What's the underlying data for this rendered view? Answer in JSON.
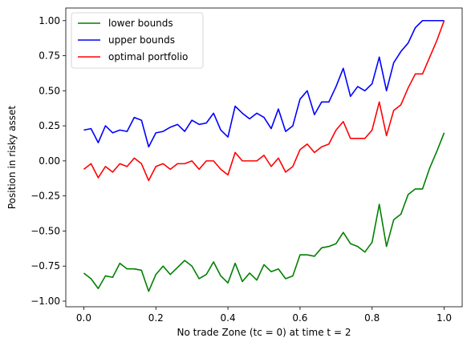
{
  "chart_data": {
    "type": "line",
    "title": "",
    "xlabel": "No trade Zone (tc = 0) at time t = 2",
    "ylabel": "Position in risky asset",
    "xlim": [
      -0.05,
      1.05
    ],
    "ylim": [
      -1.04,
      1.09
    ],
    "xticks": [
      0.0,
      0.2,
      0.4,
      0.6,
      0.8,
      1.0
    ],
    "xtick_labels": [
      "0.0",
      "0.2",
      "0.4",
      "0.6",
      "0.8",
      "1.0"
    ],
    "yticks": [
      -1.0,
      -0.75,
      -0.5,
      -0.25,
      0.0,
      0.25,
      0.5,
      0.75,
      1.0
    ],
    "ytick_labels": [
      "−1.00",
      "−0.75",
      "−0.50",
      "−0.25",
      "0.00",
      "0.25",
      "0.50",
      "0.75",
      "1.00"
    ],
    "grid": false,
    "legend_position": "upper-left",
    "x": [
      0.0,
      0.02,
      0.04,
      0.06,
      0.08,
      0.1,
      0.12,
      0.14,
      0.16,
      0.18,
      0.2,
      0.22,
      0.24,
      0.26,
      0.28,
      0.3,
      0.32,
      0.34,
      0.36,
      0.38,
      0.4,
      0.42,
      0.44,
      0.46,
      0.48,
      0.5,
      0.52,
      0.54,
      0.56,
      0.58,
      0.6,
      0.62,
      0.64,
      0.66,
      0.68,
      0.7,
      0.72,
      0.74,
      0.76,
      0.78,
      0.8,
      0.82,
      0.84,
      0.86,
      0.88,
      0.9,
      0.92,
      0.94,
      0.96,
      0.98,
      1.0
    ],
    "series": [
      {
        "name": "lower bounds",
        "color": "#008000",
        "values": [
          -0.8,
          -0.84,
          -0.91,
          -0.82,
          -0.83,
          -0.73,
          -0.77,
          -0.77,
          -0.78,
          -0.93,
          -0.81,
          -0.75,
          -0.81,
          -0.76,
          -0.71,
          -0.75,
          -0.84,
          -0.81,
          -0.72,
          -0.82,
          -0.87,
          -0.73,
          -0.86,
          -0.8,
          -0.85,
          -0.74,
          -0.79,
          -0.77,
          -0.84,
          -0.82,
          -0.67,
          -0.67,
          -0.68,
          -0.62,
          -0.61,
          -0.59,
          -0.51,
          -0.59,
          -0.61,
          -0.65,
          -0.58,
          -0.31,
          -0.61,
          -0.42,
          -0.38,
          -0.24,
          -0.2,
          -0.2,
          -0.05,
          0.07,
          0.2
        ]
      },
      {
        "name": "upper bounds",
        "color": "#0000ff",
        "values": [
          0.22,
          0.23,
          0.13,
          0.25,
          0.2,
          0.22,
          0.21,
          0.31,
          0.29,
          0.1,
          0.2,
          0.21,
          0.24,
          0.26,
          0.21,
          0.29,
          0.26,
          0.27,
          0.34,
          0.22,
          0.17,
          0.39,
          0.34,
          0.3,
          0.34,
          0.31,
          0.23,
          0.37,
          0.21,
          0.25,
          0.44,
          0.5,
          0.33,
          0.42,
          0.42,
          0.53,
          0.66,
          0.46,
          0.53,
          0.5,
          0.55,
          0.74,
          0.5,
          0.7,
          0.78,
          0.84,
          0.95,
          1.0,
          1.0,
          1.0,
          1.0
        ]
      },
      {
        "name": "optimal portfolio",
        "color": "#ff0000",
        "values": [
          -0.06,
          -0.02,
          -0.12,
          -0.04,
          -0.08,
          -0.02,
          -0.04,
          0.02,
          -0.02,
          -0.14,
          -0.04,
          -0.02,
          -0.06,
          -0.02,
          -0.02,
          0.0,
          -0.06,
          0.0,
          0.0,
          -0.06,
          -0.1,
          0.06,
          0.0,
          0.0,
          0.0,
          0.04,
          -0.04,
          0.02,
          -0.08,
          -0.04,
          0.08,
          0.12,
          0.06,
          0.1,
          0.12,
          0.22,
          0.28,
          0.16,
          0.16,
          0.16,
          0.22,
          0.42,
          0.18,
          0.36,
          0.4,
          0.52,
          0.62,
          0.62,
          0.74,
          0.86,
          1.0
        ]
      }
    ]
  }
}
